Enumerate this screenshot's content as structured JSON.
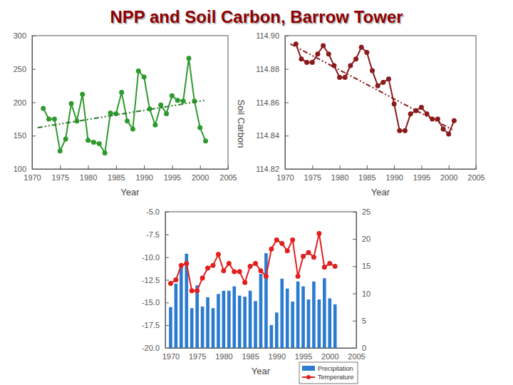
{
  "chart_data": [
    {
      "type": "line",
      "title": "NPP and Soil Carbon, Barrow Tower",
      "xlabel": "Year",
      "x": [
        1972,
        1973,
        1974,
        1975,
        1976,
        1977,
        1978,
        1979,
        1980,
        1981,
        1982,
        1983,
        1984,
        1985,
        1986,
        1987,
        1988,
        1989,
        1990,
        1991,
        1992,
        1993,
        1994,
        1995,
        1996,
        1997,
        1998,
        1999,
        2000,
        2001
      ],
      "xlim": [
        1970,
        2005
      ],
      "xticks": [
        1970,
        1975,
        1980,
        1985,
        1990,
        1995,
        2000,
        2005
      ],
      "ylim": [
        100,
        300
      ],
      "yticks": [
        100,
        150,
        200,
        250,
        300
      ],
      "series": [
        {
          "color": "#2e9a2e",
          "marker": "circle",
          "line_style": "solid",
          "values": [
            191,
            175,
            175,
            127,
            145,
            198,
            172,
            212,
            143,
            140,
            138,
            124,
            184,
            183,
            215,
            172,
            160,
            247,
            238,
            190,
            166,
            196,
            183,
            210,
            203,
            202,
            266,
            202,
            162,
            142
          ]
        },
        {
          "color": "#2a7a2a",
          "marker": "none",
          "line_style": "dashdot",
          "x": [
            1971,
            2001
          ],
          "values": [
            162,
            203
          ]
        }
      ]
    },
    {
      "type": "line",
      "xlabel": "Year",
      "ylabel": "Soil Carbon",
      "x": [
        1972,
        1973,
        1974,
        1975,
        1976,
        1977,
        1978,
        1979,
        1980,
        1981,
        1982,
        1983,
        1984,
        1985,
        1986,
        1987,
        1988,
        1989,
        1990,
        1991,
        1992,
        1993,
        1994,
        1995,
        1996,
        1997,
        1998,
        1999,
        2000,
        2001
      ],
      "xlim": [
        1970,
        2005
      ],
      "xticks": [
        1970,
        1975,
        1980,
        1985,
        1990,
        1995,
        2000,
        2005
      ],
      "ylim": [
        114.82,
        114.9
      ],
      "yticks": [
        114.82,
        114.84,
        114.86,
        114.88,
        {
          "value": 114.9,
          "label": "114.90"
        }
      ],
      "series": [
        {
          "color": "#8b1a1a",
          "marker": "circle",
          "line_style": "solid",
          "values": [
            114.895,
            114.886,
            114.884,
            114.884,
            114.889,
            114.894,
            114.889,
            114.882,
            114.875,
            114.875,
            114.882,
            114.886,
            114.893,
            114.89,
            114.879,
            114.87,
            114.872,
            114.874,
            114.859,
            114.843,
            114.843,
            114.853,
            114.855,
            114.857,
            114.853,
            114.85,
            114.85,
            114.844,
            114.841,
            114.849
          ]
        },
        {
          "color": "#8b1a1a",
          "marker": "none",
          "line_style": "dashdot",
          "x": [
            1971,
            2001
          ],
          "values": [
            114.895,
            114.843
          ]
        }
      ]
    },
    {
      "type": "bar",
      "xlabel": "Year",
      "legend": "lower right",
      "x": [
        1970,
        1971,
        1972,
        1973,
        1974,
        1975,
        1976,
        1977,
        1978,
        1979,
        1980,
        1981,
        1982,
        1983,
        1984,
        1985,
        1986,
        1987,
        1988,
        1989,
        1990,
        1991,
        1992,
        1993,
        1994,
        1995,
        1996,
        1997,
        1998,
        1999,
        2000,
        2001
      ],
      "xlim": [
        1969,
        2005
      ],
      "xticks": [
        1970,
        1975,
        1980,
        1985,
        1990,
        1995,
        2000,
        2005
      ],
      "ylim": [
        -20,
        -5
      ],
      "yticks": [
        {
          "value": -20,
          "label": "-20.0"
        },
        -17.5,
        {
          "value": -15,
          "label": "-15.0"
        },
        -12.5,
        {
          "value": -10,
          "label": "-10.0"
        },
        -7.5,
        {
          "value": -5,
          "label": "-5.0"
        }
      ],
      "y2lim": [
        0,
        25
      ],
      "y2ticks": [
        0,
        5,
        10,
        15,
        20,
        25
      ],
      "series": [
        {
          "name": "Precipitation",
          "type": "bar",
          "axis": "y2",
          "color": "#2b7bd0",
          "values": [
            7.5,
            11.8,
            15.2,
            17.3,
            7.3,
            11.5,
            7.6,
            9.3,
            7.3,
            9.9,
            10.5,
            10.5,
            11.3,
            9.6,
            9.4,
            10.5,
            8.6,
            13.6,
            17.4,
            4.2,
            6.5,
            12.7,
            10.9,
            8.5,
            12.2,
            11.3,
            8.9,
            12.2,
            8.9,
            12.8,
            9.1,
            8.0
          ]
        },
        {
          "name": "Temperature",
          "type": "line",
          "axis": "y",
          "color": "#e0201e",
          "marker": "circle",
          "line_style": "solid",
          "values": [
            -12.9,
            -12.5,
            -10.9,
            -10.7,
            -13.7,
            -13.7,
            -12.3,
            -11.2,
            -10.9,
            -9.7,
            -11.5,
            -10.7,
            -11.6,
            -11.6,
            -12.8,
            -11.0,
            -10.7,
            -11.5,
            -12.1,
            -9.1,
            -8.1,
            -8.5,
            -9.3,
            -8.1,
            -12.1,
            -9.9,
            -9.5,
            -10.0,
            -7.4,
            -11.1,
            -10.7,
            -11.0
          ]
        }
      ]
    }
  ]
}
